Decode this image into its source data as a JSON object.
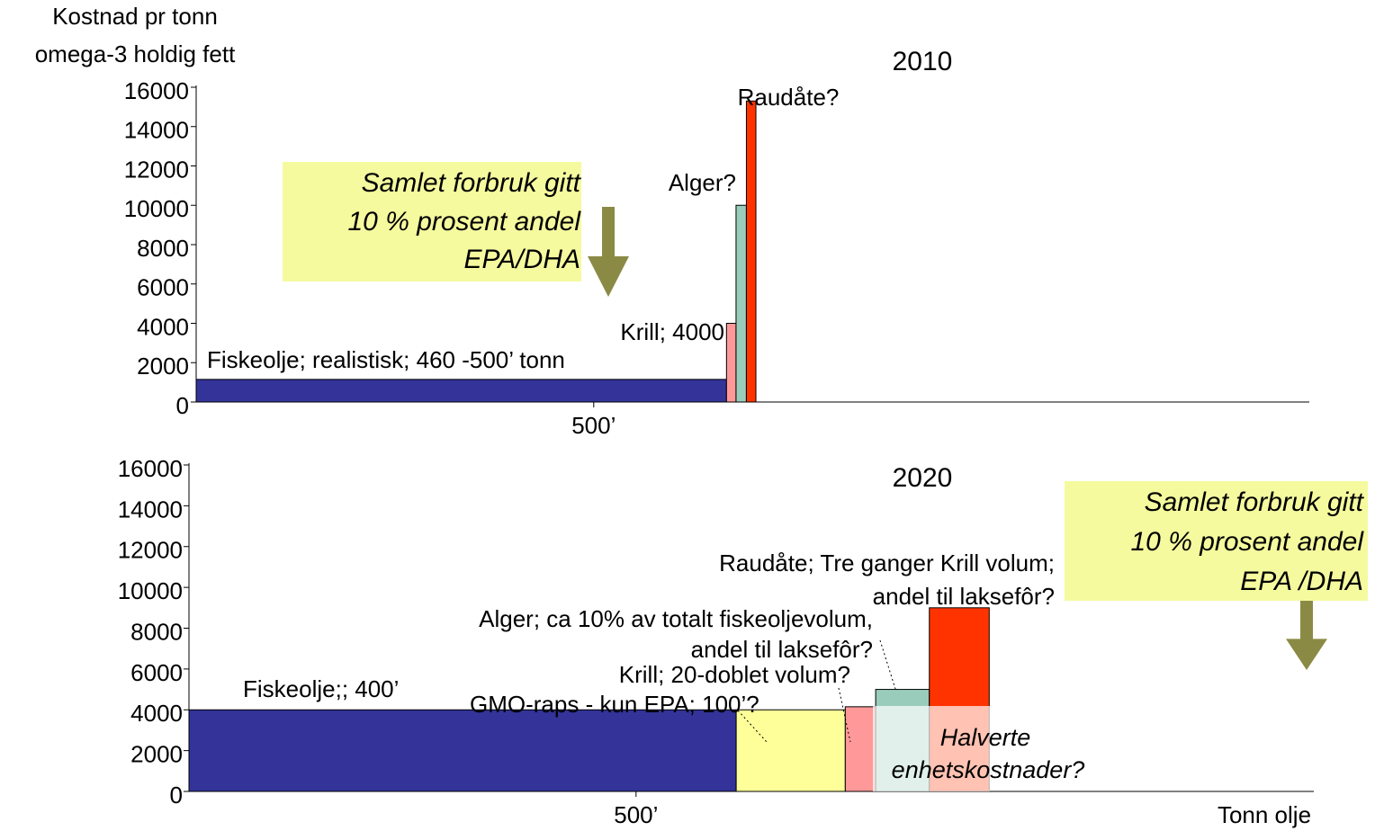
{
  "chart_data": [
    {
      "type": "bar",
      "title": "2010",
      "ylabel": [
        "Kostnad pr tonn",
        "omega-3 holdig fett"
      ],
      "ylim": [
        0,
        16000
      ],
      "yticks": [
        0,
        2000,
        4000,
        6000,
        8000,
        10000,
        12000,
        14000,
        16000
      ],
      "xlim": [
        0,
        1400
      ],
      "xticks": [
        {
          "value": 500,
          "label": "500’"
        }
      ],
      "bars": [
        {
          "label": [
            "Fiskeolje; realistisk; 460 -500’ tonn"
          ],
          "x_start": 0,
          "x_end": 667,
          "value": 1150,
          "color": "#333399"
        },
        {
          "label": [
            "Krill; 4000"
          ],
          "x_start": 667,
          "x_end": 679,
          "value": 4000,
          "color": "#ff9999"
        },
        {
          "label": [
            "Alger?"
          ],
          "x_start": 679,
          "x_end": 692,
          "value": 10000,
          "color": "#99ccbb"
        },
        {
          "label": [
            "Raudåte?"
          ],
          "x_start": 692,
          "x_end": 704,
          "value": 15300,
          "color": "#ff3300"
        }
      ],
      "callout": [
        "Samlet forbruk gitt",
        "10 % prosent andel ",
        "EPA/DHA"
      ]
    },
    {
      "type": "bar",
      "title": "2020",
      "xlabel": "Tonn olje",
      "ylim": [
        0,
        16000
      ],
      "yticks": [
        0,
        2000,
        4000,
        6000,
        8000,
        10000,
        12000,
        14000,
        16000
      ],
      "xlim": [
        0,
        1258
      ],
      "xticks": [
        {
          "value": 500,
          "label": "500’"
        }
      ],
      "bars": [
        {
          "label": [
            "Fiskeolje;; 400’"
          ],
          "x_start": 0,
          "x_end": 612,
          "value": 4000,
          "color": "#333399"
        },
        {
          "label": [
            "GMO-raps - kun EPA; 100’?"
          ],
          "x_start": 612,
          "x_end": 734,
          "value": 4000,
          "color": "#ffff99"
        },
        {
          "label": [
            "Krill; 20-doblet volum?"
          ],
          "x_start": 734,
          "x_end": 768,
          "value": 4150,
          "color": "#ff9999"
        },
        {
          "label": [
            "Alger; ca 10% av totalt fiskeoljevolum,",
            "andel til laksefôr?"
          ],
          "x_start": 768,
          "x_end": 828,
          "value": 5000,
          "color": "#99ccbb"
        },
        {
          "label": [
            "Raudåte; Tre ganger Krill volum;",
            "andel til laksefôr?"
          ],
          "x_start": 828,
          "x_end": 895,
          "value": 9000,
          "color": "#ff3300"
        }
      ],
      "note": [
        "Halverte",
        "enhetskostnader?"
      ],
      "callout": [
        "Samlet forbruk gitt",
        "10 % prosent andel ",
        "EPA /DHA"
      ]
    }
  ]
}
